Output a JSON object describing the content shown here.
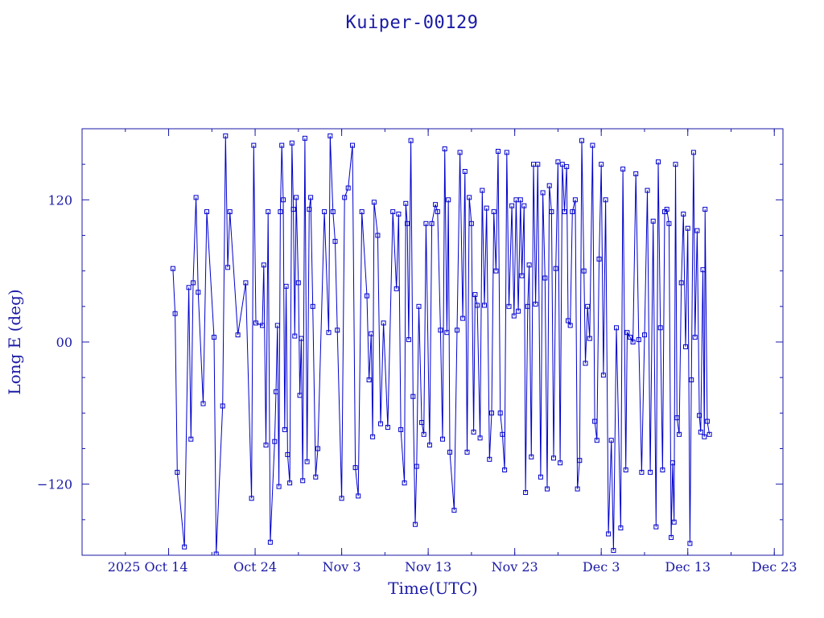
{
  "chart_data": {
    "type": "scatter",
    "title": "Kuiper-00129",
    "xlabel": "Time(UTC)",
    "ylabel": "Long E (deg)",
    "x_axis_type": "date",
    "xlim": [
      "2025-10-04",
      "2025-12-24"
    ],
    "ylim": [
      -180,
      180
    ],
    "xtick_labels": [
      {
        "date": "2025-10-14",
        "label": "2025 Oct 14"
      },
      {
        "date": "2025-10-24",
        "label": "Oct 24"
      },
      {
        "date": "2025-11-03",
        "label": "Nov  3"
      },
      {
        "date": "2025-11-13",
        "label": "Nov 13"
      },
      {
        "date": "2025-11-23",
        "label": "Nov 23"
      },
      {
        "date": "2025-12-03",
        "label": "Dec  3"
      },
      {
        "date": "2025-12-13",
        "label": "Dec 13"
      },
      {
        "date": "2025-12-23",
        "label": "Dec 23"
      }
    ],
    "ytick_labels": [
      {
        "value": 120,
        "label": "120"
      },
      {
        "value": 0,
        "label": "00"
      },
      {
        "value": -120,
        "label": "−120"
      }
    ],
    "grid": false,
    "line_color": "#0000cc",
    "marker": "open-square",
    "series": [
      {
        "points": [
          [
            "2025-10-14T12:00",
            62
          ],
          [
            "2025-10-14T18:00",
            24
          ],
          [
            "2025-10-15T00:00",
            -110
          ],
          [
            "2025-10-15T20:00",
            -173
          ],
          [
            "2025-10-16T08:00",
            46
          ],
          [
            "2025-10-16T14:00",
            -82
          ],
          [
            "2025-10-16T20:00",
            50
          ],
          [
            "2025-10-17T04:00",
            122
          ],
          [
            "2025-10-17T10:00",
            42
          ],
          [
            "2025-10-18T00:00",
            -52
          ],
          [
            "2025-10-18T10:00",
            110
          ],
          [
            "2025-10-19T06:00",
            4
          ],
          [
            "2025-10-19T12:00",
            -179
          ],
          [
            "2025-10-20T06:00",
            -54
          ],
          [
            "2025-10-20T14:00",
            174
          ],
          [
            "2025-10-20T20:00",
            63
          ],
          [
            "2025-10-21T02:00",
            110
          ],
          [
            "2025-10-22T00:00",
            6
          ],
          [
            "2025-10-22T22:00",
            50
          ],
          [
            "2025-10-23T14:00",
            -132
          ],
          [
            "2025-10-23T20:00",
            166
          ],
          [
            "2025-10-24T02:00",
            16
          ],
          [
            "2025-10-24T20:00",
            14
          ],
          [
            "2025-10-25T00:00",
            65
          ],
          [
            "2025-10-25T06:00",
            -87
          ],
          [
            "2025-10-25T12:00",
            110
          ],
          [
            "2025-10-25T18:00",
            -169
          ],
          [
            "2025-10-26T06:00",
            -84
          ],
          [
            "2025-10-26T10:00",
            -42
          ],
          [
            "2025-10-26T14:00",
            14
          ],
          [
            "2025-10-26T18:00",
            -122
          ],
          [
            "2025-10-26T22:00",
            110
          ],
          [
            "2025-10-27T02:00",
            166
          ],
          [
            "2025-10-27T06:00",
            120
          ],
          [
            "2025-10-27T10:00",
            -74
          ],
          [
            "2025-10-27T14:00",
            47
          ],
          [
            "2025-10-27T18:00",
            -95
          ],
          [
            "2025-10-28T00:00",
            -119
          ],
          [
            "2025-10-28T06:00",
            168
          ],
          [
            "2025-10-28T10:00",
            112
          ],
          [
            "2025-10-28T14:00",
            5
          ],
          [
            "2025-10-28T18:00",
            122
          ],
          [
            "2025-10-29T00:00",
            50
          ],
          [
            "2025-10-29T04:00",
            -45
          ],
          [
            "2025-10-29T08:00",
            3
          ],
          [
            "2025-10-29T12:00",
            -117
          ],
          [
            "2025-10-29T18:00",
            172
          ],
          [
            "2025-10-30T00:00",
            -101
          ],
          [
            "2025-10-30T06:00",
            112
          ],
          [
            "2025-10-30T10:00",
            122
          ],
          [
            "2025-10-30T16:00",
            30
          ],
          [
            "2025-10-31T00:00",
            -114
          ],
          [
            "2025-10-31T06:00",
            -90
          ],
          [
            "2025-11-01T00:00",
            110
          ],
          [
            "2025-11-01T12:00",
            8
          ],
          [
            "2025-11-01T16:00",
            174
          ],
          [
            "2025-11-02T00:00",
            110
          ],
          [
            "2025-11-02T06:00",
            85
          ],
          [
            "2025-11-02T12:00",
            10
          ],
          [
            "2025-11-03T00:00",
            -132
          ],
          [
            "2025-11-03T08:00",
            122
          ],
          [
            "2025-11-03T18:00",
            130
          ],
          [
            "2025-11-04T06:00",
            166
          ],
          [
            "2025-11-04T14:00",
            -106
          ],
          [
            "2025-11-04T22:00",
            -130
          ],
          [
            "2025-11-05T08:00",
            110
          ],
          [
            "2025-11-05T22:00",
            39
          ],
          [
            "2025-11-06T04:00",
            -32
          ],
          [
            "2025-11-06T10:00",
            7
          ],
          [
            "2025-11-06T14:00",
            -80
          ],
          [
            "2025-11-06T18:00",
            118
          ],
          [
            "2025-11-07T04:00",
            90
          ],
          [
            "2025-11-07T12:00",
            -69
          ],
          [
            "2025-11-07T20:00",
            16
          ],
          [
            "2025-11-08T08:00",
            -72
          ],
          [
            "2025-11-08T22:00",
            110
          ],
          [
            "2025-11-09T08:00",
            45
          ],
          [
            "2025-11-09T14:00",
            108
          ],
          [
            "2025-11-09T20:00",
            -74
          ],
          [
            "2025-11-10T06:00",
            -119
          ],
          [
            "2025-11-10T10:00",
            117
          ],
          [
            "2025-11-10T14:00",
            100
          ],
          [
            "2025-11-10T18:00",
            2
          ],
          [
            "2025-11-11T00:00",
            170
          ],
          [
            "2025-11-11T06:00",
            -46
          ],
          [
            "2025-11-11T12:00",
            -154
          ],
          [
            "2025-11-11T16:00",
            -105
          ],
          [
            "2025-11-11T22:00",
            30
          ],
          [
            "2025-11-12T06:00",
            -68
          ],
          [
            "2025-11-12T12:00",
            -78
          ],
          [
            "2025-11-12T18:00",
            100
          ],
          [
            "2025-11-13T04:00",
            -87
          ],
          [
            "2025-11-13T10:00",
            100
          ],
          [
            "2025-11-13T20:00",
            116
          ],
          [
            "2025-11-14T02:00",
            110
          ],
          [
            "2025-11-14T10:00",
            10
          ],
          [
            "2025-11-14T16:00",
            -82
          ],
          [
            "2025-11-14T22:00",
            163
          ],
          [
            "2025-11-15T04:00",
            8
          ],
          [
            "2025-11-15T08:00",
            120
          ],
          [
            "2025-11-15T12:00",
            -93
          ],
          [
            "2025-11-16T00:00",
            -142
          ],
          [
            "2025-11-16T08:00",
            10
          ],
          [
            "2025-11-16T16:00",
            160
          ],
          [
            "2025-11-17T00:00",
            20
          ],
          [
            "2025-11-17T06:00",
            144
          ],
          [
            "2025-11-17T12:00",
            -93
          ],
          [
            "2025-11-17T18:00",
            122
          ],
          [
            "2025-11-18T00:00",
            100
          ],
          [
            "2025-11-18T06:00",
            -76
          ],
          [
            "2025-11-18T10:00",
            40
          ],
          [
            "2025-11-18T16:00",
            31
          ],
          [
            "2025-11-19T00:00",
            -81
          ],
          [
            "2025-11-19T06:00",
            128
          ],
          [
            "2025-11-19T12:00",
            31
          ],
          [
            "2025-11-19T18:00",
            113
          ],
          [
            "2025-11-20T02:00",
            -99
          ],
          [
            "2025-11-20T08:00",
            -60
          ],
          [
            "2025-11-20T14:00",
            110
          ],
          [
            "2025-11-20T20:00",
            60
          ],
          [
            "2025-11-21T02:00",
            161
          ],
          [
            "2025-11-21T08:00",
            -60
          ],
          [
            "2025-11-21T14:00",
            -78
          ],
          [
            "2025-11-21T20:00",
            -108
          ],
          [
            "2025-11-22T02:00",
            160
          ],
          [
            "2025-11-22T08:00",
            30
          ],
          [
            "2025-11-22T16:00",
            115
          ],
          [
            "2025-11-22T22:00",
            22
          ],
          [
            "2025-11-23T04:00",
            120
          ],
          [
            "2025-11-23T10:00",
            26
          ],
          [
            "2025-11-23T16:00",
            120
          ],
          [
            "2025-11-23T20:00",
            56
          ],
          [
            "2025-11-24T02:00",
            115
          ],
          [
            "2025-11-24T06:00",
            -127
          ],
          [
            "2025-11-24T12:00",
            30
          ],
          [
            "2025-11-24T16:00",
            65
          ],
          [
            "2025-11-24T22:00",
            -97
          ],
          [
            "2025-11-25T04:00",
            150
          ],
          [
            "2025-11-25T10:00",
            32
          ],
          [
            "2025-11-25T16:00",
            150
          ],
          [
            "2025-11-26T00:00",
            -114
          ],
          [
            "2025-11-26T06:00",
            126
          ],
          [
            "2025-11-26T12:00",
            54
          ],
          [
            "2025-11-26T18:00",
            -124
          ],
          [
            "2025-11-27T00:00",
            132
          ],
          [
            "2025-11-27T06:00",
            110
          ],
          [
            "2025-11-27T12:00",
            -98
          ],
          [
            "2025-11-27T18:00",
            62
          ],
          [
            "2025-11-28T00:00",
            152
          ],
          [
            "2025-11-28T06:00",
            -102
          ],
          [
            "2025-11-28T12:00",
            150
          ],
          [
            "2025-11-28T18:00",
            110
          ],
          [
            "2025-11-29T00:00",
            148
          ],
          [
            "2025-11-29T04:00",
            18
          ],
          [
            "2025-11-29T10:00",
            14
          ],
          [
            "2025-11-29T16:00",
            110
          ],
          [
            "2025-11-30T00:00",
            120
          ],
          [
            "2025-11-30T06:00",
            -124
          ],
          [
            "2025-11-30T12:00",
            -100
          ],
          [
            "2025-11-30T18:00",
            170
          ],
          [
            "2025-12-01T00:00",
            60
          ],
          [
            "2025-12-01T04:00",
            -18
          ],
          [
            "2025-12-01T10:00",
            30
          ],
          [
            "2025-12-01T16:00",
            3
          ],
          [
            "2025-12-02T00:00",
            166
          ],
          [
            "2025-12-02T06:00",
            -67
          ],
          [
            "2025-12-02T12:00",
            -83
          ],
          [
            "2025-12-02T18:00",
            70
          ],
          [
            "2025-12-03T00:00",
            150
          ],
          [
            "2025-12-03T06:00",
            -28
          ],
          [
            "2025-12-03T12:00",
            120
          ],
          [
            "2025-12-03T20:00",
            -162
          ],
          [
            "2025-12-04T04:00",
            -83
          ],
          [
            "2025-12-04T10:00",
            -176
          ],
          [
            "2025-12-04T18:00",
            12
          ],
          [
            "2025-12-05T06:00",
            -157
          ],
          [
            "2025-12-05T12:00",
            146
          ],
          [
            "2025-12-05T20:00",
            -108
          ],
          [
            "2025-12-06T00:00",
            8
          ],
          [
            "2025-12-06T08:00",
            4
          ],
          [
            "2025-12-06T16:00",
            0
          ],
          [
            "2025-12-07T00:00",
            142
          ],
          [
            "2025-12-07T08:00",
            2
          ],
          [
            "2025-12-07T16:00",
            -110
          ],
          [
            "2025-12-08T00:00",
            6
          ],
          [
            "2025-12-08T08:00",
            128
          ],
          [
            "2025-12-08T16:00",
            -110
          ],
          [
            "2025-12-09T00:00",
            102
          ],
          [
            "2025-12-09T08:00",
            -156
          ],
          [
            "2025-12-09T14:00",
            152
          ],
          [
            "2025-12-09T20:00",
            12
          ],
          [
            "2025-12-10T02:00",
            -108
          ],
          [
            "2025-12-10T08:00",
            110
          ],
          [
            "2025-12-10T14:00",
            112
          ],
          [
            "2025-12-10T20:00",
            100
          ],
          [
            "2025-12-11T02:00",
            -165
          ],
          [
            "2025-12-11T06:00",
            -102
          ],
          [
            "2025-12-11T10:00",
            -152
          ],
          [
            "2025-12-11T14:00",
            150
          ],
          [
            "2025-12-11T18:00",
            -64
          ],
          [
            "2025-12-12T00:00",
            -78
          ],
          [
            "2025-12-12T06:00",
            50
          ],
          [
            "2025-12-12T12:00",
            108
          ],
          [
            "2025-12-12T18:00",
            -4
          ],
          [
            "2025-12-13T00:00",
            96
          ],
          [
            "2025-12-13T06:00",
            -170
          ],
          [
            "2025-12-13T10:00",
            -32
          ],
          [
            "2025-12-13T16:00",
            160
          ],
          [
            "2025-12-13T20:00",
            4
          ],
          [
            "2025-12-14T02:00",
            94
          ],
          [
            "2025-12-14T08:00",
            -62
          ],
          [
            "2025-12-14T12:00",
            -76
          ],
          [
            "2025-12-14T18:00",
            61
          ],
          [
            "2025-12-14T22:00",
            -80
          ],
          [
            "2025-12-15T00:00",
            112
          ],
          [
            "2025-12-15T06:00",
            -67
          ],
          [
            "2025-12-15T12:00",
            -78
          ]
        ]
      }
    ]
  }
}
